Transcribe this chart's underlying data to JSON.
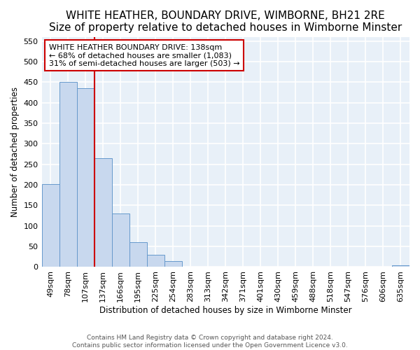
{
  "title": "WHITE HEATHER, BOUNDARY DRIVE, WIMBORNE, BH21 2RE",
  "subtitle": "Size of property relative to detached houses in Wimborne Minster",
  "xlabel": "Distribution of detached houses by size in Wimborne Minster",
  "ylabel": "Number of detached properties",
  "bar_labels": [
    "49sqm",
    "78sqm",
    "107sqm",
    "137sqm",
    "166sqm",
    "195sqm",
    "225sqm",
    "254sqm",
    "283sqm",
    "313sqm",
    "342sqm",
    "371sqm",
    "401sqm",
    "430sqm",
    "459sqm",
    "488sqm",
    "518sqm",
    "547sqm",
    "576sqm",
    "606sqm",
    "635sqm"
  ],
  "bar_values": [
    201,
    450,
    435,
    265,
    130,
    60,
    30,
    15,
    1,
    1,
    1,
    1,
    1,
    1,
    1,
    1,
    1,
    1,
    1,
    1,
    5
  ],
  "bar_color": "#c8d8ee",
  "bar_edge_color": "#6699cc",
  "red_line_x": 3.0,
  "annotation_title": "WHITE HEATHER BOUNDARY DRIVE: 138sqm",
  "annotation_line1": "← 68% of detached houses are smaller (1,083)",
  "annotation_line2": "31% of semi-detached houses are larger (503) →",
  "annotation_box_color": "#ffffff",
  "annotation_box_edge_color": "#cc0000",
  "ylim": [
    0,
    560
  ],
  "yticks": [
    0,
    50,
    100,
    150,
    200,
    250,
    300,
    350,
    400,
    450,
    500,
    550
  ],
  "footer1": "Contains HM Land Registry data © Crown copyright and database right 2024.",
  "footer2": "Contains public sector information licensed under the Open Government Licence v3.0.",
  "bg_color": "#e8f0f8",
  "fig_color": "#ffffff",
  "grid_color": "#ffffff",
  "title_fontsize": 11,
  "subtitle_fontsize": 9.5,
  "axis_fontsize": 8.5,
  "tick_fontsize": 8,
  "footer_fontsize": 6.5
}
